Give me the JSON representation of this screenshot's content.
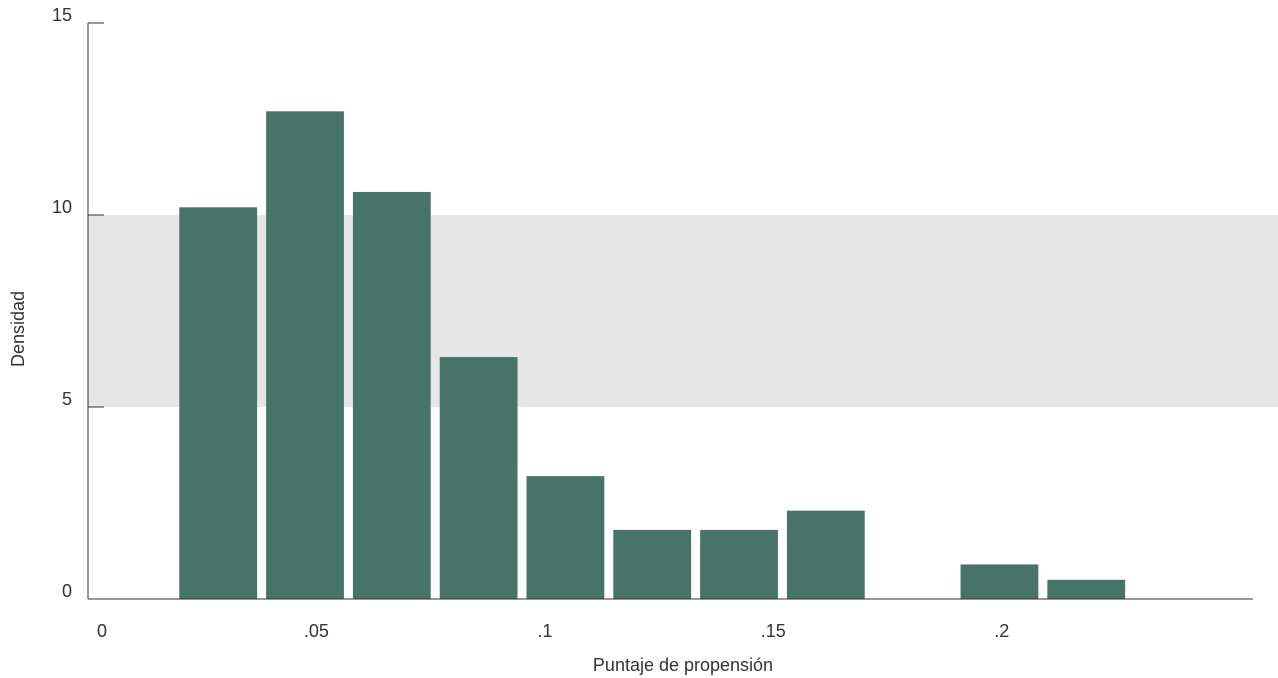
{
  "chart_data": {
    "type": "bar",
    "title": "",
    "xlabel": "Puntaje de propensión",
    "ylabel": "Densidad",
    "xlim": [
      0,
      0.255
    ],
    "ylim": [
      0,
      15
    ],
    "x_ticks": [
      {
        "value": 0,
        "label": "0"
      },
      {
        "value": 0.05,
        "label": ".05"
      },
      {
        "value": 0.1,
        "label": ".1"
      },
      {
        "value": 0.15,
        "label": ".15"
      },
      {
        "value": 0.2,
        "label": ".2"
      }
    ],
    "y_ticks": [
      {
        "value": 0,
        "label": "0"
      },
      {
        "value": 5,
        "label": "5"
      },
      {
        "value": 10,
        "label": "10"
      },
      {
        "value": 15,
        "label": "15"
      }
    ],
    "bin_width": 0.019,
    "bins": [
      {
        "start": 0.0,
        "value": 0
      },
      {
        "start": 0.019,
        "value": 10.2
      },
      {
        "start": 0.038,
        "value": 12.7
      },
      {
        "start": 0.057,
        "value": 10.6
      },
      {
        "start": 0.076,
        "value": 6.3
      },
      {
        "start": 0.095,
        "value": 3.2
      },
      {
        "start": 0.114,
        "value": 1.8
      },
      {
        "start": 0.133,
        "value": 1.8
      },
      {
        "start": 0.152,
        "value": 2.3
      },
      {
        "start": 0.171,
        "value": 0
      },
      {
        "start": 0.19,
        "value": 0.9
      },
      {
        "start": 0.209,
        "value": 0.5
      },
      {
        "start": 0.228,
        "value": 0
      }
    ],
    "shaded_band": {
      "y_from": 5,
      "y_to": 10
    },
    "grid": false,
    "colors": {
      "bar": "#477368",
      "band": "#e6e6e6",
      "axis": "#333333"
    }
  }
}
